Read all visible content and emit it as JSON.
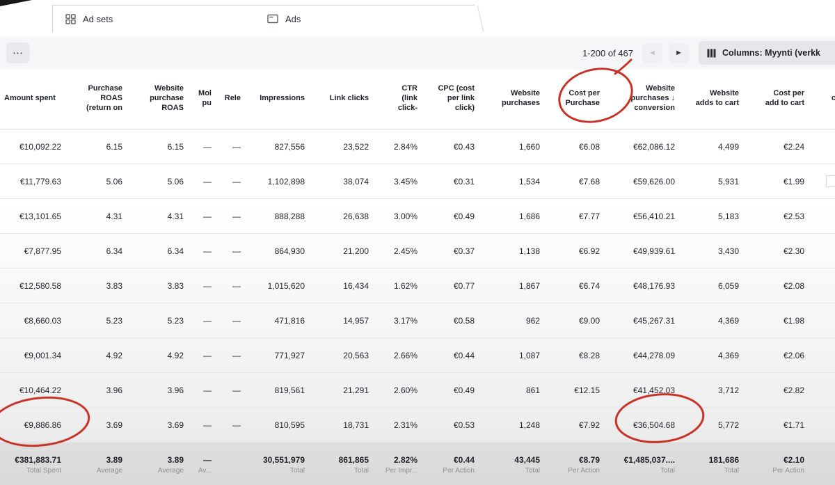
{
  "tabs": {
    "items": [
      {
        "id": "ad-sets",
        "label": "Ad sets"
      },
      {
        "id": "ads",
        "label": "Ads"
      }
    ]
  },
  "toolbar": {
    "more": "⋯",
    "pagination_range": "1-200 of 467",
    "prev": "◄",
    "next": "►",
    "columns_label": "Columns: Myynti (verkk"
  },
  "table": {
    "columns": [
      {
        "id": "amount_spent",
        "label": "Amount spent",
        "width": 100
      },
      {
        "id": "purchase_roas",
        "label": "Purchase\nROAS\n(return on",
        "width": 88
      },
      {
        "id": "website_purchase_roas",
        "label": "Website\npurchase\nROAS",
        "width": 88
      },
      {
        "id": "mol",
        "label": "Mol\npu",
        "width": 40
      },
      {
        "id": "rele",
        "label": "Rele",
        "width": 42
      },
      {
        "id": "impressions",
        "label": "Impressions",
        "width": 92
      },
      {
        "id": "link_clicks",
        "label": "Link clicks",
        "width": 92
      },
      {
        "id": "ctr",
        "label": "CTR\n(link\nclick-",
        "width": 70
      },
      {
        "id": "cpc",
        "label": "CPC (cost\nper link\nclick)",
        "width": 82
      },
      {
        "id": "website_purchases",
        "label": "Website\npurchases",
        "width": 94
      },
      {
        "id": "cost_per_purchase",
        "label": "Cost per\nPurchase",
        "width": 86
      },
      {
        "id": "website_purchases_conversion",
        "label": "Website\npurchases ↓\nconversion",
        "width": 108
      },
      {
        "id": "website_adds_to_cart",
        "label": "Website\nadds to cart",
        "width": 92
      },
      {
        "id": "cost_per_add_to_cart",
        "label": "Cost per\nadd to cart",
        "width": 94
      },
      {
        "id": "cl",
        "label": "cl",
        "width": 48
      }
    ],
    "rows": [
      [
        "€10,092.22",
        "6.15",
        "6.15",
        "—",
        "—",
        "827,556",
        "23,522",
        "2.84%",
        "€0.43",
        "1,660",
        "€6.08",
        "€62,086.12",
        "4,499",
        "€2.24",
        ""
      ],
      [
        "€11,779.63",
        "5.06",
        "5.06",
        "—",
        "—",
        "1,102,898",
        "38,074",
        "3.45%",
        "€0.31",
        "1,534",
        "€7.68",
        "€59,626.00",
        "5,931",
        "€1.99",
        ""
      ],
      [
        "€13,101.65",
        "4.31",
        "4.31",
        "—",
        "—",
        "888,288",
        "26,638",
        "3.00%",
        "€0.49",
        "1,686",
        "€7.77",
        "€56,410.21",
        "5,183",
        "€2.53",
        ""
      ],
      [
        "€7,877.95",
        "6.34",
        "6.34",
        "—",
        "—",
        "864,930",
        "21,200",
        "2.45%",
        "€0.37",
        "1,138",
        "€6.92",
        "€49,939.61",
        "3,430",
        "€2.30",
        ""
      ],
      [
        "€12,580.58",
        "3.83",
        "3.83",
        "—",
        "—",
        "1,015,620",
        "16,434",
        "1.62%",
        "€0.77",
        "1,867",
        "€6.74",
        "€48,176.93",
        "6,059",
        "€2.08",
        ""
      ],
      [
        "€8,660.03",
        "5.23",
        "5.23",
        "—",
        "—",
        "471,816",
        "14,957",
        "3.17%",
        "€0.58",
        "962",
        "€9.00",
        "€45,267.31",
        "4,369",
        "€1.98",
        ""
      ],
      [
        "€9,001.34",
        "4.92",
        "4.92",
        "—",
        "—",
        "771,927",
        "20,563",
        "2.66%",
        "€0.44",
        "1,087",
        "€8.28",
        "€44,278.09",
        "4,369",
        "€2.06",
        ""
      ],
      [
        "€10,464.22",
        "3.96",
        "3.96",
        "—",
        "—",
        "819,561",
        "21,291",
        "2.60%",
        "€0.49",
        "861",
        "€12.15",
        "€41,452.03",
        "3,712",
        "€2.82",
        ""
      ],
      [
        "€9,886.86",
        "3.69",
        "3.69",
        "—",
        "—",
        "810,595",
        "18,731",
        "2.31%",
        "€0.53",
        "1,248",
        "€7.92",
        "€36,504.68",
        "5,772",
        "€1.71",
        ""
      ]
    ],
    "totals": [
      {
        "value": "€381,883.71",
        "label": "Total Spent"
      },
      {
        "value": "3.89",
        "label": "Average"
      },
      {
        "value": "3.89",
        "label": "Average"
      },
      {
        "value": "—",
        "label": "Av..."
      },
      {
        "value": "",
        "label": ""
      },
      {
        "value": "30,551,979",
        "label": "Total"
      },
      {
        "value": "861,865",
        "label": "Total"
      },
      {
        "value": "2.82%",
        "label": "Per Impr..."
      },
      {
        "value": "€0.44",
        "label": "Per Action"
      },
      {
        "value": "43,445",
        "label": "Total"
      },
      {
        "value": "€8.79",
        "label": "Per Action"
      },
      {
        "value": "€1,485,037....",
        "label": "Total"
      },
      {
        "value": "181,686",
        "label": "Total"
      },
      {
        "value": "€2.10",
        "label": "Per Action"
      },
      {
        "value": "",
        "label": ""
      }
    ]
  },
  "annotations": {
    "stroke_color": "#c5281c",
    "items": [
      {
        "id": "cost-per-purchase-header"
      },
      {
        "id": "total-amount-spent"
      },
      {
        "id": "total-website-purchases-conversion"
      }
    ]
  }
}
